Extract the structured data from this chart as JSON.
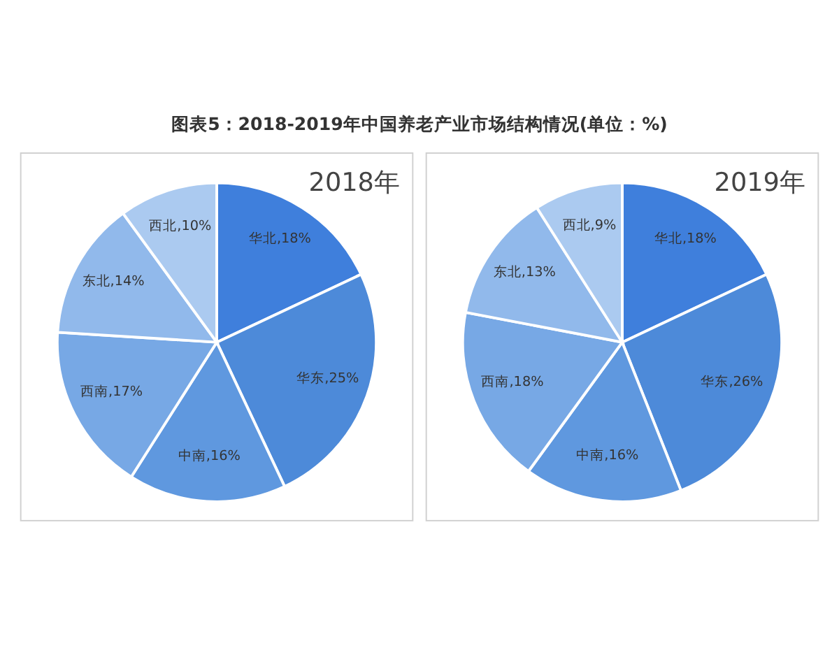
{
  "chart_data": [
    {
      "type": "pie",
      "title": "图表5：2018-2019年中国养老产业市场结构情况(单位：%)",
      "subtitle": "2018年",
      "categories": [
        "华北",
        "华东",
        "中南",
        "西南",
        "东北",
        "西北"
      ],
      "values": [
        18,
        25,
        16,
        17,
        14,
        10
      ],
      "value_labels": [
        "18%",
        "25%",
        "16%",
        "17%",
        "14%",
        "10%"
      ],
      "colors": [
        "#3f7fdc",
        "#4d8ad9",
        "#5f98df",
        "#77a8e5",
        "#91b9eb",
        "#abcaf0"
      ]
    },
    {
      "type": "pie",
      "subtitle": "2019年",
      "categories": [
        "华北",
        "华东",
        "中南",
        "西南",
        "东北",
        "西北"
      ],
      "values": [
        18,
        26,
        16,
        18,
        13,
        9
      ],
      "value_labels": [
        "18%",
        "26%",
        "16%",
        "18%",
        "13%",
        "9%"
      ],
      "colors": [
        "#3f7fdc",
        "#4d8ad9",
        "#5f98df",
        "#77a8e5",
        "#91b9eb",
        "#abcaf0"
      ]
    }
  ]
}
